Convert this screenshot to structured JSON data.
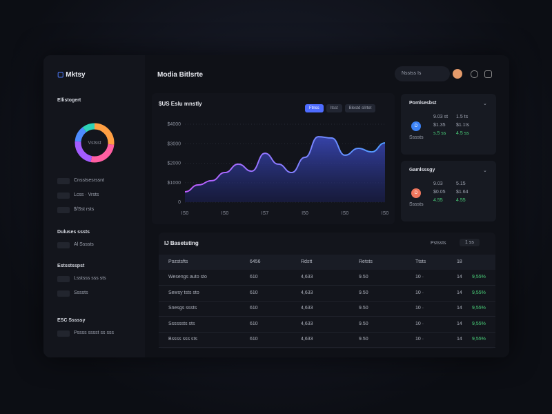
{
  "sidebar": {
    "logo": "Mktsy",
    "sections": [
      {
        "title": "Ellistogert",
        "items": [
          "Cnsstsesrssnt",
          "Lcss · Vrsts",
          "$/Sst rsts"
        ]
      },
      {
        "title": "Duluses sssts",
        "items": [
          "Al Ssssts"
        ]
      },
      {
        "title": "Estsstsspst",
        "items": [
          "Lsstsss sss sts",
          "Ssssts"
        ]
      },
      {
        "title": "ESC Sssssy",
        "items": [
          "Pssss sssst ss sss"
        ]
      }
    ],
    "donut_label": "Vstsst"
  },
  "header": {
    "title": "Modia Bitlsrte",
    "search": "Nsstss Is"
  },
  "chart": {
    "type": "area",
    "title": "$US Eslu mnstly",
    "tabs": [
      "Ftnss",
      "Itsst",
      "Blestd sllrtet"
    ],
    "values": [
      530,
      885,
      1100,
      1520,
      1950,
      1590,
      2510,
      1950,
      1520,
      2300,
      3360,
      3290,
      2410,
      2760,
      2580,
      3040
    ],
    "xlabels": [
      "IS0",
      "IS0",
      "IS7",
      "I50",
      "IS0",
      "IS0"
    ],
    "ylim": [
      0,
      4000
    ],
    "yticks": [
      0,
      {
        "value": 1000,
        "label": "$1000"
      },
      {
        "value": 2000,
        "label": "$2000"
      },
      {
        "value": 3000,
        "label": "$3000"
      },
      {
        "value": 4000,
        "label": "$4000"
      }
    ],
    "color": "#6d7bff"
  },
  "cards": [
    {
      "title": "Pomlsesbst",
      "icon": "D",
      "rows": [
        [
          "9.03 st",
          "1.5 ts"
        ],
        [
          "$1.35",
          "$1.1ts"
        ],
        [
          "s.5 ss",
          "4.5 ss"
        ]
      ],
      "caption": "Ssssts"
    },
    {
      "title": "Gamlsssgy",
      "icon": "D",
      "rows": [
        [
          "9.03",
          "5.15"
        ],
        [
          "$0.05",
          "$1.64"
        ],
        [
          "4.55",
          "4.55"
        ]
      ],
      "caption": "Ssssts"
    }
  ],
  "table": {
    "title": "IJ Basetsting",
    "filter": "Pstssts",
    "button": "1 ss",
    "headers": [
      "Pozstsfts",
      "6456",
      "Rdstt",
      "Retsts",
      "Ttsts",
      "18"
    ],
    "rows": [
      [
        "Wesengs auto sto",
        "610",
        "4,633",
        "9.50",
        "10 ·",
        "14",
        "9,55%"
      ],
      [
        "Sewsy tsts sto",
        "610",
        "4,633",
        "9.50",
        "10 ·",
        "14",
        "9,55%"
      ],
      [
        "Snesgs sssts",
        "610",
        "4,633",
        "9.50",
        "10 ·",
        "14",
        "9,55%"
      ],
      [
        "Ssssssts sts",
        "610",
        "4,633",
        "9.50",
        "10 ·",
        "14",
        "9,55%"
      ],
      [
        "Bssss sss sts",
        "610",
        "4,633",
        "9.50",
        "10 ·",
        "14",
        "9,55%"
      ]
    ]
  }
}
